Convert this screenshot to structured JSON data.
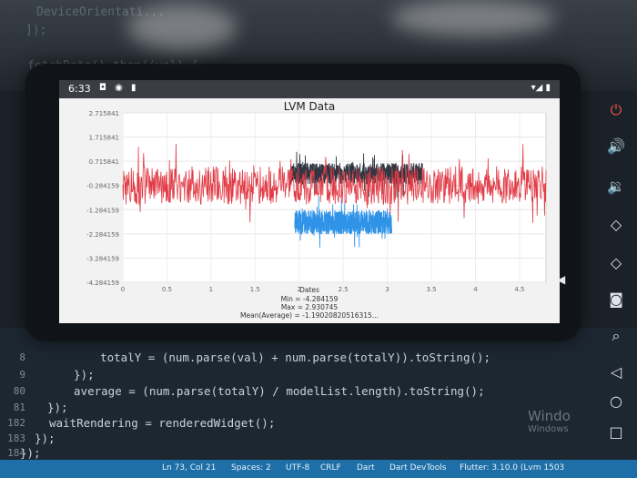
{
  "editor_top": {
    "line1": "DeviceOrientati...",
    "line2": "]);",
    "line3": "fetchData().then((val) {"
  },
  "app": {
    "status_time": "6:33",
    "status_icons": "◘ ◉ ▮",
    "status_signal": "▾◢ ▮",
    "title": "LVM Data"
  },
  "chart_data": {
    "type": "line",
    "title": "LVM Data",
    "xlabel": "Dates",
    "ylabel": "",
    "y_ticks": [
      "2.715841",
      "1.715841",
      "0.715841",
      "-0.284159",
      "-1.284159",
      "-2.284159",
      "-3.284159",
      "-4.284159"
    ],
    "x_ticks": [
      "0",
      "0.5",
      "1",
      "1.5",
      "2",
      "2.5",
      "3",
      "3.5",
      "4",
      "4.5"
    ],
    "xlim": [
      0,
      4.8
    ],
    "ylim": [
      -4.284159,
      2.715841
    ],
    "series": [
      {
        "color": "#e23b46",
        "x_range": [
          0,
          4.8
        ],
        "center": -0.284159,
        "spread": 1.6
      },
      {
        "color": "#2f3742",
        "x_range": [
          1.9,
          3.4
        ],
        "center": 0.2,
        "spread": 0.9
      },
      {
        "color": "#2f93e8",
        "x_range": [
          1.95,
          3.05
        ],
        "center": -1.8,
        "spread": 1.0
      }
    ],
    "stats": {
      "min": "Min = -4.284159",
      "max": "Max = 2.930745",
      "mean": "Mean(Average) = -1.19020820516315..."
    },
    "grid": true
  },
  "code": {
    "lines": [
      {
        "num": "8",
        "text": "    totalY = (num.parse(val) + num.parse(totalY)).toString();"
      },
      {
        "num": "9",
        "text": "  });"
      },
      {
        "num": "80",
        "text": "  average = (num.parse(totalY) / modelList.length).toString();"
      },
      {
        "num": "81",
        "text": "});"
      },
      {
        "num": "182",
        "text": "waitRendering = renderedWidget();"
      },
      {
        "num": "183",
        "text": "});"
      },
      {
        "num": "184",
        "text": "});"
      }
    ]
  },
  "windows_watermark": {
    "line1": "Windo",
    "line2": "Windows"
  },
  "vscode_status": {
    "position": "Ln 73, Col 21",
    "spaces": "Spaces: 2",
    "encoding": "UTF-8",
    "eol": "CRLF",
    "language": "Dart",
    "devtools": "Dart DevTools",
    "flutter": "Flutter: 3.10.0 (Lvm 1503"
  },
  "colors": {
    "accent": "#1e6fa8",
    "series_red": "#e23b46",
    "series_blue": "#2f93e8",
    "series_dark": "#2f3742"
  }
}
